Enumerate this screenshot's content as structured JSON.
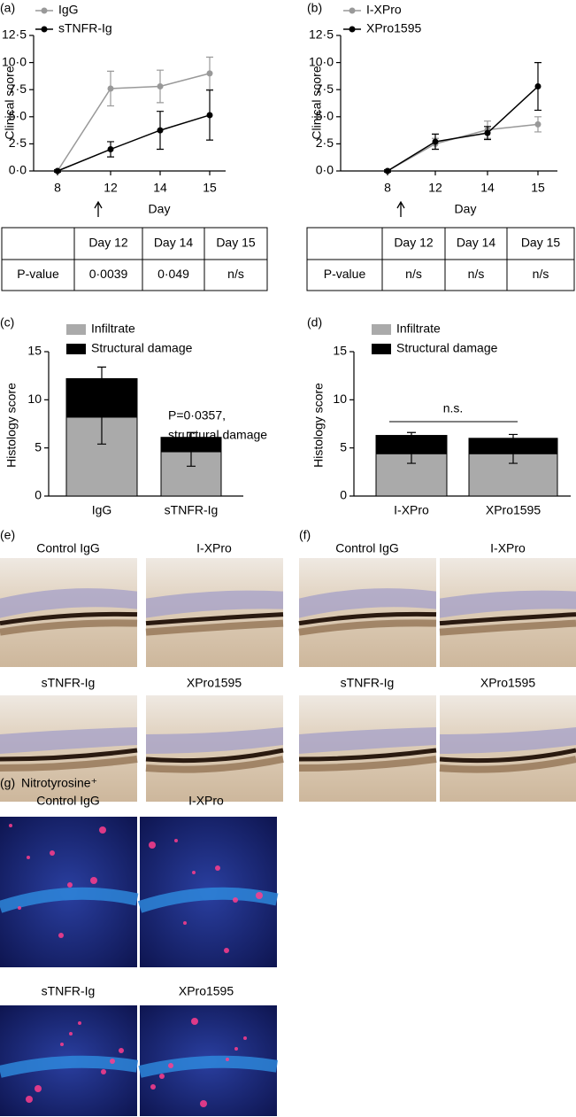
{
  "chart_data": [
    {
      "type": "line",
      "panel_label": "(a)",
      "y_label": "Clinical score",
      "x_label": "Day",
      "categories": [
        "8",
        "12",
        "14",
        "15"
      ],
      "series": [
        {
          "name": "IgG",
          "color": "#999999",
          "values": [
            0,
            7.6,
            7.8,
            9.0
          ],
          "errors": [
            0.1,
            1.6,
            1.5,
            1.5
          ]
        },
        {
          "name": "sTNFR-Ig",
          "color": "#000000",
          "values": [
            0,
            2.0,
            3.75,
            5.15
          ],
          "errors": [
            0.1,
            0.7,
            1.75,
            2.3
          ]
        }
      ],
      "ylim": [
        0,
        12.5
      ],
      "yticks": [
        {
          "value": 0,
          "label": "0·0"
        },
        {
          "value": 2.5,
          "label": "2·5"
        },
        {
          "value": 5,
          "label": "5·0"
        },
        {
          "value": 7.5,
          "label": "7·5"
        },
        {
          "value": 10,
          "label": "10·0"
        },
        {
          "value": 12.5,
          "label": "12·5"
        }
      ],
      "legend": "upper left",
      "grid": false
    },
    {
      "type": "line",
      "panel_label": "(b)",
      "y_label": "Clinical score",
      "x_label": "Day",
      "categories": [
        "8",
        "12",
        "14",
        "15"
      ],
      "series": [
        {
          "name": "I-XPro",
          "color": "#999999",
          "values": [
            0,
            2.5,
            3.8,
            4.3
          ],
          "errors": [
            0.1,
            0.5,
            0.8,
            0.7
          ]
        },
        {
          "name": "XPro1595",
          "color": "#000000",
          "values": [
            0,
            2.7,
            3.5,
            7.8
          ],
          "errors": [
            0.1,
            0.7,
            0.6,
            2.2
          ]
        }
      ],
      "ylim": [
        0,
        12.5
      ],
      "yticks": [
        {
          "value": 0,
          "label": "0·0"
        },
        {
          "value": 2.5,
          "label": "2·5"
        },
        {
          "value": 5,
          "label": "5·0"
        },
        {
          "value": 7.5,
          "label": "7·5"
        },
        {
          "value": 10,
          "label": "10·0"
        },
        {
          "value": 12.5,
          "label": "12·5"
        }
      ],
      "legend": "upper left",
      "grid": false
    },
    {
      "type": "bar",
      "stacked": true,
      "panel_label": "(c)",
      "y_label": "Histology score",
      "categories": [
        "IgG",
        "sTNFR-Ig"
      ],
      "series": [
        {
          "name": "Infiltrate",
          "color": "#aaaaaa",
          "values": [
            8.2,
            4.6
          ],
          "errors": [
            2.8,
            1.5
          ],
          "error_direction": "down"
        },
        {
          "name": "Structural damage",
          "color": "#000000",
          "values": [
            4.0,
            1.5
          ],
          "errors": [
            1.2,
            0.5
          ],
          "error_direction": "up"
        }
      ],
      "ylim": [
        0,
        15
      ],
      "yticks": [
        0,
        5,
        10,
        15
      ],
      "annotation": [
        "P=0·0357,",
        "structural damage"
      ],
      "legend": "top",
      "grid": false
    },
    {
      "type": "bar",
      "stacked": true,
      "panel_label": "(d)",
      "y_label": "Histology score",
      "categories": [
        "I-XPro",
        "XPro1595"
      ],
      "series": [
        {
          "name": "Infiltrate",
          "color": "#aaaaaa",
          "values": [
            4.4,
            4.4
          ],
          "errors": [
            1.0,
            1.0
          ],
          "error_direction": "down"
        },
        {
          "name": "Structural damage",
          "color": "#000000",
          "values": [
            1.9,
            1.6
          ],
          "errors": [
            0.3,
            0.4
          ],
          "error_direction": "up"
        }
      ],
      "ylim": [
        0,
        15
      ],
      "yticks": [
        0,
        5,
        10,
        15
      ],
      "annotation": [
        "n.s."
      ],
      "legend": "top",
      "grid": false
    }
  ],
  "tables": [
    {
      "header": [
        "Day 12",
        "Day 14",
        "Day 15"
      ],
      "row_label": "P-value",
      "row": [
        "0·0039",
        "0·049",
        "n/s"
      ]
    },
    {
      "header": [
        "Day 12",
        "Day 14",
        "Day 15"
      ],
      "row_label": "P-value",
      "row": [
        "n/s",
        "n/s",
        "n/s"
      ]
    }
  ],
  "image_panels": [
    {
      "label": "(e)",
      "images": [
        "Control IgG",
        "I-XPro",
        "sTNFR-Ig",
        "XPro1595"
      ]
    },
    {
      "label": "(f)",
      "images": [
        "Control IgG",
        "I-XPro",
        "sTNFR-Ig",
        "XPro1595"
      ]
    },
    {
      "label": "(g)",
      "title": "Nitrotyrosine⁺",
      "images": [
        "Control IgG",
        "I-XPro",
        "sTNFR-Ig",
        "XPro1595"
      ]
    }
  ]
}
